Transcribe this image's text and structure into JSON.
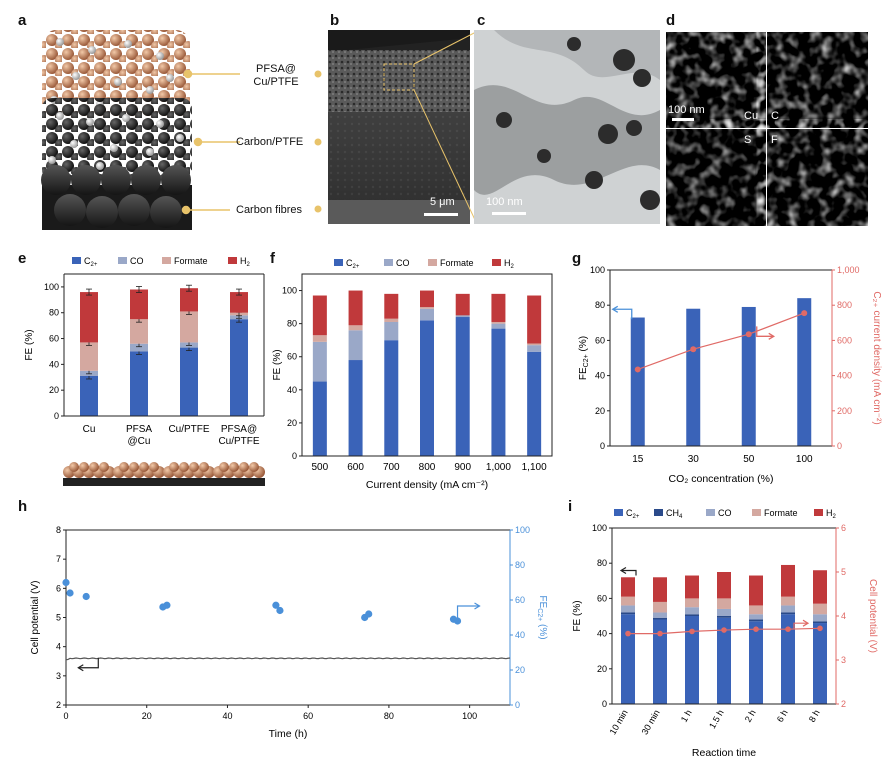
{
  "panels": {
    "a": {
      "letter": "a",
      "labels": [
        "PFSA@\nCu/PTFE",
        "Carbon/PTFE",
        "Carbon fibres"
      ],
      "label1_line1": "PFSA@",
      "label1_line2": "Cu/PTFE",
      "label2": "Carbon/PTFE",
      "label3": "Carbon fibres"
    },
    "b": {
      "letter": "b",
      "scale": "5 μm"
    },
    "c": {
      "letter": "c",
      "scale": "100 nm"
    },
    "d": {
      "letter": "d",
      "scale": "100 nm",
      "elements": [
        "Cu",
        "C",
        "S",
        "F"
      ],
      "colors": {
        "Cu": "#d9d20a",
        "C": "#e01010",
        "S": "#c020c0",
        "F": "#20b020"
      }
    },
    "e": {
      "letter": "e"
    },
    "f": {
      "letter": "f"
    },
    "g": {
      "letter": "g"
    },
    "h": {
      "letter": "h"
    },
    "i": {
      "letter": "i"
    }
  },
  "colors": {
    "c2": "#3a63b8",
    "co": "#9aa8c8",
    "ch4": "#2a4a8a",
    "formate": "#d4a8a0",
    "h2": "#c0393b",
    "cur": "#e06a66",
    "fe_blue": "#4a90d9",
    "potential": "#555555"
  },
  "chart_data": [
    {
      "id": "e",
      "type": "bar",
      "stacked": true,
      "legend": [
        "C2+",
        "CO",
        "Formate",
        "H2"
      ],
      "legend_text": {
        "c2": "C",
        "c2_sub": "2+",
        "co": "CO",
        "formate": "Formate",
        "h2": "H",
        "h2_sub": "2"
      },
      "categories": [
        "Cu",
        "PFSA\n@Cu",
        "Cu/PTFE",
        "PFSA@\nCu/PTFE"
      ],
      "category_lines": [
        [
          "Cu"
        ],
        [
          "PFSA",
          "@Cu"
        ],
        [
          "Cu/PTFE"
        ],
        [
          "PFSA@",
          "Cu/PTFE"
        ]
      ],
      "series": [
        {
          "name": "C2+",
          "values": [
            31,
            50,
            53,
            75
          ]
        },
        {
          "name": "CO",
          "values": [
            4,
            6,
            4,
            3
          ]
        },
        {
          "name": "Formate",
          "values": [
            22,
            19,
            24,
            2
          ]
        },
        {
          "name": "H2",
          "values": [
            39,
            23,
            18,
            16
          ]
        }
      ],
      "ylabel": "FE (%)",
      "ylim": [
        0,
        110
      ],
      "yticks": [
        0,
        20,
        40,
        60,
        80,
        100
      ]
    },
    {
      "id": "f",
      "type": "bar",
      "stacked": true,
      "legend": [
        "C2+",
        "CO",
        "Formate",
        "H2"
      ],
      "legend_text": {
        "c2": "C",
        "c2_sub": "2+",
        "co": "CO",
        "formate": "Formate",
        "h2": "H",
        "h2_sub": "2"
      },
      "categories": [
        "500",
        "600",
        "700",
        "800",
        "900",
        "1,000",
        "1,100"
      ],
      "series": [
        {
          "name": "C2+",
          "values": [
            45,
            58,
            70,
            82,
            84,
            77,
            63
          ]
        },
        {
          "name": "CO",
          "values": [
            24,
            18,
            11,
            7,
            1,
            3,
            4
          ]
        },
        {
          "name": "Formate",
          "values": [
            4,
            3,
            2,
            1,
            0,
            1,
            1
          ]
        },
        {
          "name": "H2",
          "values": [
            24,
            21,
            15,
            10,
            13,
            17,
            29
          ]
        }
      ],
      "xlabel": "Current density (mA cm⁻²)",
      "ylabel": "FE (%)",
      "ylim": [
        0,
        110
      ],
      "yticks": [
        0,
        10,
        20,
        30,
        40,
        50,
        60,
        70,
        80,
        90,
        100
      ]
    },
    {
      "id": "g",
      "type": "bar",
      "categories": [
        "15",
        "30",
        "50",
        "100"
      ],
      "values": [
        73,
        78,
        79,
        84
      ],
      "line_values": [
        435,
        550,
        635,
        755
      ],
      "xlabel": "CO₂ concentration (%)",
      "ylabel": "FE",
      "ylabel_sub": "C2+",
      "ylabel_suffix": " (%)",
      "ylabel_right": "C₂₊ current density (mA cm⁻²)",
      "ylim": [
        0,
        100
      ],
      "yticks": [
        0,
        20,
        40,
        60,
        80,
        100
      ],
      "ylim_right": [
        0,
        1000
      ],
      "yticks_right": [
        "0",
        "200",
        "400",
        "600",
        "800",
        "1,000"
      ]
    },
    {
      "id": "h",
      "type": "scatter",
      "xlabel": "Time (h)",
      "ylabel": "Cell potential (V)",
      "ylabel_right": "FE",
      "ylabel_right_sub": "C2+",
      "ylabel_right_suffix": " (%)",
      "xlim": [
        0,
        110
      ],
      "xticks": [
        0,
        20,
        40,
        60,
        80,
        100
      ],
      "ylim": [
        2,
        8
      ],
      "yticks": [
        2,
        3,
        4,
        5,
        6,
        7,
        8
      ],
      "ylim_right": [
        0,
        100
      ],
      "yticks_right": [
        0,
        20,
        40,
        60,
        80,
        100
      ],
      "potential_level": 3.6,
      "fe_points": [
        [
          0,
          70
        ],
        [
          1,
          64
        ],
        [
          5,
          62
        ],
        [
          24,
          56
        ],
        [
          25,
          57
        ],
        [
          52,
          57
        ],
        [
          53,
          54
        ],
        [
          74,
          50
        ],
        [
          75,
          52
        ],
        [
          96,
          49
        ],
        [
          97,
          48
        ]
      ]
    },
    {
      "id": "i",
      "type": "bar",
      "stacked": true,
      "legend": [
        "C2+",
        "CH4",
        "CO",
        "Formate",
        "H2"
      ],
      "legend_text": {
        "c2": "C",
        "c2_sub": "2+",
        "ch4": "CH",
        "ch4_sub": "4",
        "co": "CO",
        "formate": "Formate",
        "h2": "H",
        "h2_sub": "2"
      },
      "categories": [
        "10 min",
        "30 min",
        "1 h",
        "1.5 h",
        "2 h",
        "6 h",
        "8 h"
      ],
      "series": [
        {
          "name": "C2+",
          "values": [
            51,
            48,
            50,
            49,
            47,
            51,
            46
          ]
        },
        {
          "name": "CH4",
          "values": [
            1,
            1,
            1,
            1,
            1,
            1,
            1
          ]
        },
        {
          "name": "CO",
          "values": [
            4,
            3,
            4,
            4,
            3,
            4,
            4
          ]
        },
        {
          "name": "Formate",
          "values": [
            5,
            6,
            5,
            6,
            5,
            5,
            6
          ]
        },
        {
          "name": "H2",
          "values": [
            11,
            14,
            13,
            15,
            17,
            18,
            19
          ]
        }
      ],
      "line_values": [
        3.6,
        3.6,
        3.65,
        3.68,
        3.7,
        3.7,
        3.72
      ],
      "xlabel": "Reaction time",
      "ylabel": "FE (%)",
      "ylabel_right": "Cell potential (V)",
      "ylim": [
        0,
        100
      ],
      "yticks": [
        0,
        20,
        40,
        60,
        80,
        100
      ],
      "ylim_right": [
        2,
        6
      ],
      "yticks_right": [
        2,
        3,
        4,
        5,
        6
      ]
    }
  ]
}
